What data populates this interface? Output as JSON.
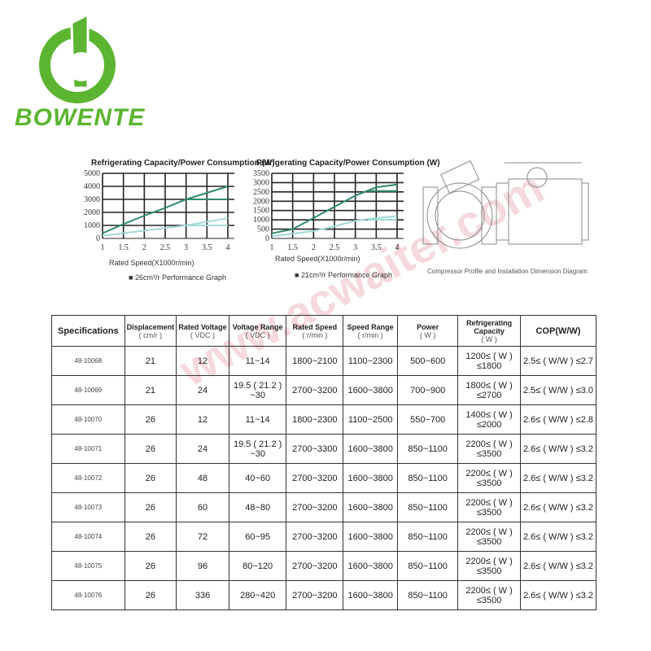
{
  "brand": {
    "name": "BOWENTE",
    "color": "#5cb531"
  },
  "watermark": "www.acwaiter.com",
  "chart_data": [
    {
      "type": "line",
      "title": "Refrigerating Capacity/Power Consumption (W)",
      "xlabel": "Rated Speed(X1000r/min)",
      "caption": "26cm³/r Performance Graph",
      "xlim": [
        1,
        4
      ],
      "ylim": [
        0,
        5000
      ],
      "xticks": [
        "1",
        "1.5",
        "2",
        "2.5",
        "3",
        "3.5",
        "4"
      ],
      "yticks": [
        "0",
        "1000",
        "2000",
        "3000",
        "4000",
        "5000"
      ],
      "grid": true,
      "series": [
        {
          "color": "#2e8b6e",
          "x": [
            1,
            1.5,
            2,
            2.5,
            3,
            3.5,
            4
          ],
          "y": [
            400,
            1100,
            1750,
            2350,
            3000,
            3500,
            4000
          ]
        },
        {
          "color": "#2e8b6e",
          "x": [
            3,
            4
          ],
          "y": [
            3000,
            3000
          ]
        },
        {
          "color": "#9fd9d6",
          "x": [
            1,
            2,
            3,
            4
          ],
          "y": [
            200,
            600,
            1000,
            1550
          ]
        },
        {
          "color": "#9fd9d6",
          "x": [
            3,
            4
          ],
          "y": [
            1000,
            1000
          ]
        }
      ]
    },
    {
      "type": "line",
      "title": "Refrigerating Capacity/Power Consumption (W)",
      "xlabel": "Rated Speed(X1000r/min)",
      "caption": "21cm³/r Performance Graph",
      "xlim": [
        1,
        4
      ],
      "ylim": [
        0,
        3500
      ],
      "xticks": [
        "1",
        "1.5",
        "2",
        "2.5",
        "3",
        "3.5",
        "4"
      ],
      "yticks": [
        "0",
        "500",
        "1000",
        "1500",
        "2000",
        "2500",
        "3000",
        "3500"
      ],
      "grid": true,
      "series": [
        {
          "color": "#2e8b6e",
          "x": [
            1,
            1.5,
            2,
            2.5,
            3,
            3.5,
            4
          ],
          "y": [
            270,
            500,
            1100,
            1700,
            2300,
            2750,
            2900
          ]
        },
        {
          "color": "#2e8b6e",
          "x": [
            3.3,
            4
          ],
          "y": [
            2550,
            2550
          ]
        },
        {
          "color": "#9fd9d6",
          "x": [
            1,
            1.5,
            2,
            2.5,
            3,
            3.5,
            4
          ],
          "y": [
            120,
            250,
            400,
            650,
            950,
            1100,
            1200
          ]
        },
        {
          "color": "#9fd9d6",
          "x": [
            3.3,
            4
          ],
          "y": [
            1000,
            1000
          ]
        }
      ]
    }
  ],
  "diagram": {
    "caption": "Compressor Profile and Installation Dimension Diagram"
  },
  "table": {
    "headers": [
      [
        "Specifications",
        ""
      ],
      [
        "Displacement",
        "( cm/r )"
      ],
      [
        "Rated Voltage",
        "( VDC )"
      ],
      [
        "Voltage Range",
        "( VDC )"
      ],
      [
        "Rated Speed",
        "( r/min )"
      ],
      [
        "Speed Range",
        "( r/min )"
      ],
      [
        "Power",
        "( W )"
      ],
      [
        "Refrigerating Capacity",
        "( W )"
      ],
      [
        "COP(W/W)",
        ""
      ]
    ],
    "rows": [
      [
        "48-10068",
        "21",
        "12",
        "11~14",
        "1800~2100",
        "1100~2300",
        "500~600",
        "1200≤ ( W ) ≤1800",
        "2.5≤ ( W/W ) ≤2.7"
      ],
      [
        "48-10069",
        "21",
        "24",
        "19.5 ( 21.2 ) ~30",
        "2700~3200",
        "1600~3800",
        "700~900",
        "1800≤ ( W ) ≤2700",
        "2.5≤ ( W/W ) ≤3.0"
      ],
      [
        "48-10070",
        "26",
        "12",
        "11~14",
        "1800~2300",
        "1100~2500",
        "550~700",
        "1400≤ ( W ) ≤2000",
        "2.6≤ ( W/W ) ≤2.8"
      ],
      [
        "48-10071",
        "26",
        "24",
        "19.5 ( 21.2 ) ~30",
        "2700~3300",
        "1600~3800",
        "850~1100",
        "2200≤ ( W ) ≤3500",
        "2.6≤ ( W/W ) ≤3.2"
      ],
      [
        "48-10072",
        "26",
        "48",
        "40~60",
        "2700~3200",
        "1600~3800",
        "850~1100",
        "2200≤ ( W ) ≤3500",
        "2.6≤ ( W/W ) ≤3.2"
      ],
      [
        "48-10073",
        "26",
        "60",
        "48~80",
        "2700~3200",
        "1600~3800",
        "850~1100",
        "2200≤ ( W ) ≤3500",
        "2.6≤ ( W/W ) ≤3.2"
      ],
      [
        "48-10074",
        "26",
        "72",
        "60~95",
        "2700~3200",
        "1600~3800",
        "850~1100",
        "2200≤ ( W ) ≤3500",
        "2.6≤ ( W/W ) ≤3.2"
      ],
      [
        "48-10075",
        "26",
        "96",
        "80~120",
        "2700~3200",
        "1600~3800",
        "850~1100",
        "2200≤ ( W ) ≤3500",
        "2.6≤ ( W/W ) ≤3.2"
      ],
      [
        "48-10076",
        "26",
        "336",
        "280~420",
        "2700~3200",
        "1600~3800",
        "850~1100",
        "2200≤ ( W ) ≤3500",
        "2.6≤ ( W/W ) ≤3.2"
      ]
    ]
  }
}
